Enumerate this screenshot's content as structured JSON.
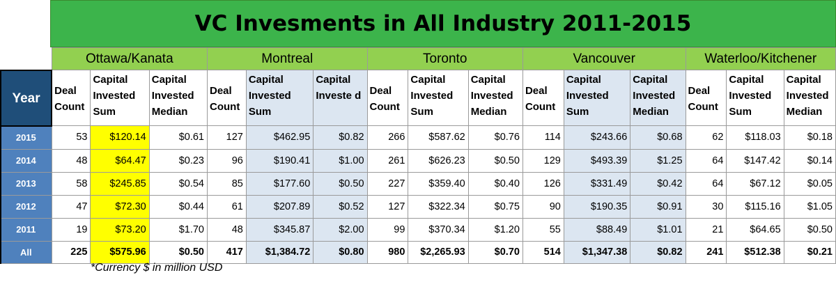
{
  "title": "VC Invesments in All Industry 2011-2015",
  "footnote": "*Currency $ in million USD",
  "year_header": "Year",
  "cities": [
    "Ottawa/Kanata",
    "Montreal",
    "Toronto",
    "Vancouver",
    "Waterloo/Kitchener"
  ],
  "headers": [
    [
      "Deal Count",
      "Capital Invested Sum",
      "Capital Invested Median"
    ],
    [
      "Deal Count",
      "Capital Invested Sum",
      "Capital Investe d"
    ],
    [
      "Deal Count",
      "Capital Invested Sum",
      "Capital Invested Median"
    ],
    [
      "Deal Count",
      "Capital Invested Sum",
      "Capital Invested Median"
    ],
    [
      "Deal Count",
      "Capital Invested Sum",
      "Capital Invested Median"
    ]
  ],
  "rows": [
    {
      "year": "2015",
      "cells": [
        "53",
        "$120.14",
        "$0.61",
        "127",
        "$462.95",
        "$0.82",
        "266",
        "$587.62",
        "$0.76",
        "114",
        "$243.66",
        "$0.68",
        "62",
        "$118.03",
        "$0.18"
      ]
    },
    {
      "year": "2014",
      "cells": [
        "48",
        "$64.47",
        "$0.23",
        "96",
        "$190.41",
        "$1.00",
        "261",
        "$626.23",
        "$0.50",
        "129",
        "$493.39",
        "$1.25",
        "64",
        "$147.42",
        "$0.14"
      ]
    },
    {
      "year": "2013",
      "cells": [
        "58",
        "$245.85",
        "$0.54",
        "85",
        "$177.60",
        "$0.50",
        "227",
        "$359.40",
        "$0.40",
        "126",
        "$331.49",
        "$0.42",
        "64",
        "$67.12",
        "$0.05"
      ]
    },
    {
      "year": "2012",
      "cells": [
        "47",
        "$72.30",
        "$0.44",
        "61",
        "$207.89",
        "$0.52",
        "127",
        "$322.34",
        "$0.75",
        "90",
        "$190.35",
        "$0.91",
        "30",
        "$115.16",
        "$1.05"
      ]
    },
    {
      "year": "2011",
      "cells": [
        "19",
        "$73.20",
        "$1.70",
        "48",
        "$345.87",
        "$2.00",
        "99",
        "$370.34",
        "$1.20",
        "55",
        "$88.49",
        "$1.01",
        "21",
        "$64.65",
        "$0.50"
      ]
    },
    {
      "year": "All",
      "cells": [
        "225",
        "$575.96",
        "$0.50",
        "417",
        "$1,384.72",
        "$0.80",
        "980",
        "$2,265.93",
        "$0.70",
        "514",
        "$1,347.38",
        "$0.82",
        "241",
        "$512.38",
        "$0.21"
      ]
    }
  ],
  "colors": {
    "title_bg": "#3cb44b",
    "city_bg": "#92d050",
    "year_bg": "#4f81bd",
    "highlight": "#ffff00",
    "alt_col": "#dce6f1"
  }
}
